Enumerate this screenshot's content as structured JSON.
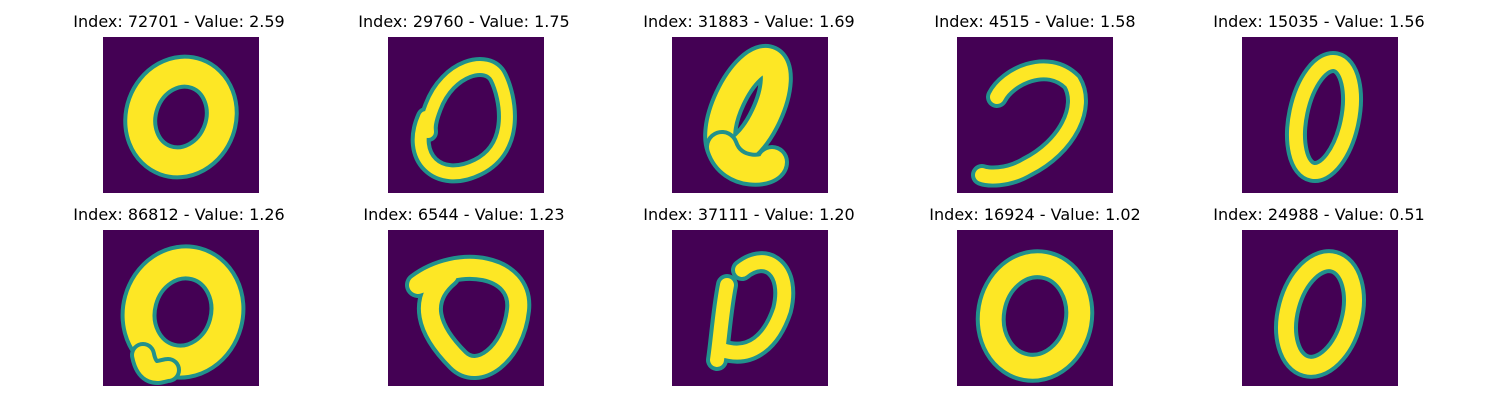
{
  "colors": {
    "background": "#440154",
    "mid": "#21918c",
    "foreground": "#fde725"
  },
  "panels": [
    {
      "title": "Index: 72701 - Value: 2.59",
      "shape": "thick-loop"
    },
    {
      "title": "Index: 29760 - Value: 1.75",
      "shape": "open-loop"
    },
    {
      "title": "Index: 31883 - Value: 1.69",
      "shape": "slanted-loop"
    },
    {
      "title": "Index: 4515 - Value: 1.58",
      "shape": "hook"
    },
    {
      "title": "Index: 15035 - Value: 1.56",
      "shape": "narrow-loop"
    },
    {
      "title": "Index: 86812 - Value: 1.26",
      "shape": "thick-loop-2"
    },
    {
      "title": "Index: 6544 - Value: 1.23",
      "shape": "triangle-loop"
    },
    {
      "title": "Index: 37111 - Value: 1.20",
      "shape": "reverse-c"
    },
    {
      "title": "Index: 16924 - Value: 1.02",
      "shape": "round-loop"
    },
    {
      "title": "Index: 24988 - Value: 0.51",
      "shape": "thin-loop"
    }
  ]
}
